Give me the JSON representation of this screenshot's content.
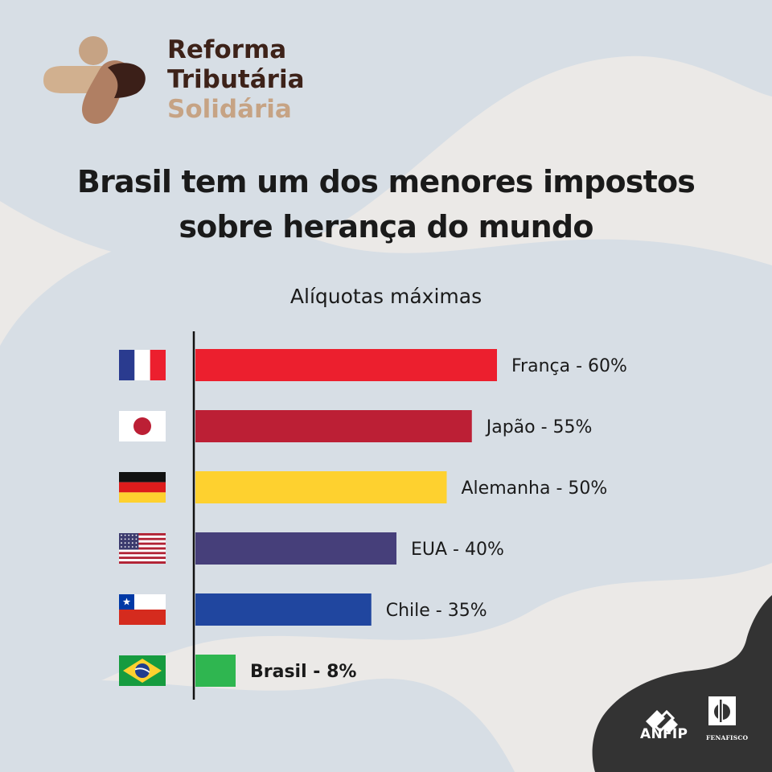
{
  "brand": {
    "line1": "Reforma",
    "line2": "Tributária",
    "line3": "Solidária"
  },
  "headline": {
    "line1": "Brasil tem um dos menores impostos",
    "line2": "sobre herança do mundo"
  },
  "footer": {
    "anfip": "ANFIP",
    "fenafisco": "FENAFISCO"
  },
  "colors": {
    "background": "#ebe9e7",
    "blob": "#d7dee5",
    "corner": "#333333",
    "brand_dark": "#3d2219",
    "brand_light": "#c6a384"
  },
  "chart_data": {
    "type": "bar",
    "orientation": "horizontal",
    "title": "Alíquotas máximas",
    "categories": [
      "França - 60%",
      "Japão - 55%",
      "Alemanha - 50%",
      "EUA - 40%",
      "Chile - 35%",
      "Brasil - 8%"
    ],
    "values": [
      60,
      55,
      50,
      40,
      35,
      8
    ],
    "bar_colors": [
      "#ec1f2e",
      "#bc1f35",
      "#fed12f",
      "#463f7a",
      "#20469f",
      "#2fb650"
    ],
    "flags": [
      "france-flag-icon",
      "japan-flag-icon",
      "germany-flag-icon",
      "usa-flag-icon",
      "chile-flag-icon",
      "brazil-flag-icon"
    ],
    "highlight": "Brasil - 8%",
    "xlim": [
      0,
      60
    ],
    "grid": false
  }
}
